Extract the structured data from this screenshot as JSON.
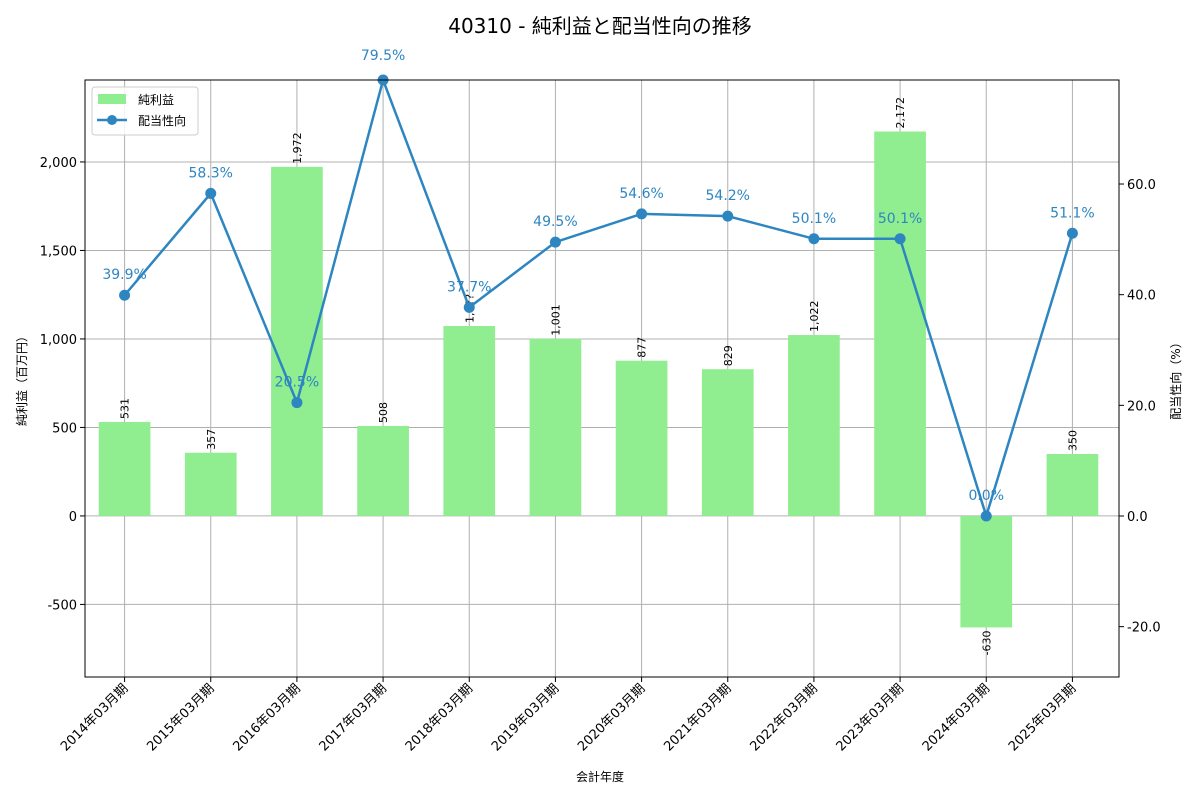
{
  "chart_data": {
    "type": "bar+line",
    "title": "40310 - 純利益と配当性向の推移",
    "xlabel": "会計年度",
    "ylabel_left": "純利益（百万円）",
    "ylabel_right": "配当性向（%）",
    "categories": [
      "2014年03月期",
      "2015年03月期",
      "2016年03月期",
      "2017年03月期",
      "2018年03月期",
      "2019年03月期",
      "2020年03月期",
      "2021年03月期",
      "2022年03月期",
      "2023年03月期",
      "2024年03月期",
      "2025年03月期"
    ],
    "series": [
      {
        "name": "純利益",
        "type": "bar",
        "axis": "left",
        "color": "#90ee90",
        "values": [
          531,
          357,
          1972,
          508,
          1073,
          1001,
          877,
          829,
          1022,
          2172,
          -630,
          350
        ],
        "labels": [
          "531",
          "357",
          "1,972",
          "508",
          "1,0??",
          "1,001",
          "877",
          "829",
          "1,022",
          "2,172",
          "-630",
          "350"
        ]
      },
      {
        "name": "配当性向",
        "type": "line",
        "axis": "right",
        "color": "#2e86c1",
        "values": [
          39.9,
          58.3,
          20.5,
          79.5,
          37.7,
          49.5,
          54.6,
          54.2,
          50.1,
          50.1,
          0.0,
          51.1
        ],
        "labels": [
          "39.9%",
          "58.3%",
          "20.5%",
          "79.5%",
          "37.7%",
          "49.5%",
          "54.6%",
          "54.2%",
          "50.1%",
          "50.1%",
          "0.0%",
          "51.1%"
        ]
      }
    ],
    "ylim_left": [
      -910,
      2463
    ],
    "ylim_right": [
      -29.1,
      78.8
    ],
    "yticks_left": [
      -500,
      0,
      500,
      1000,
      1500,
      2000
    ],
    "yticks_left_labels": [
      "-500",
      "0",
      "500",
      "1,000",
      "1,500",
      "2,000"
    ],
    "yticks_right": [
      -20,
      0,
      20,
      40,
      60
    ],
    "yticks_right_labels": [
      "-20.0",
      "0.0",
      "20.0",
      "40.0",
      "60.0"
    ],
    "grid": true,
    "legend_position": "upper left"
  },
  "legend": {
    "bar_label": "純利益",
    "line_label": "配当性向"
  }
}
